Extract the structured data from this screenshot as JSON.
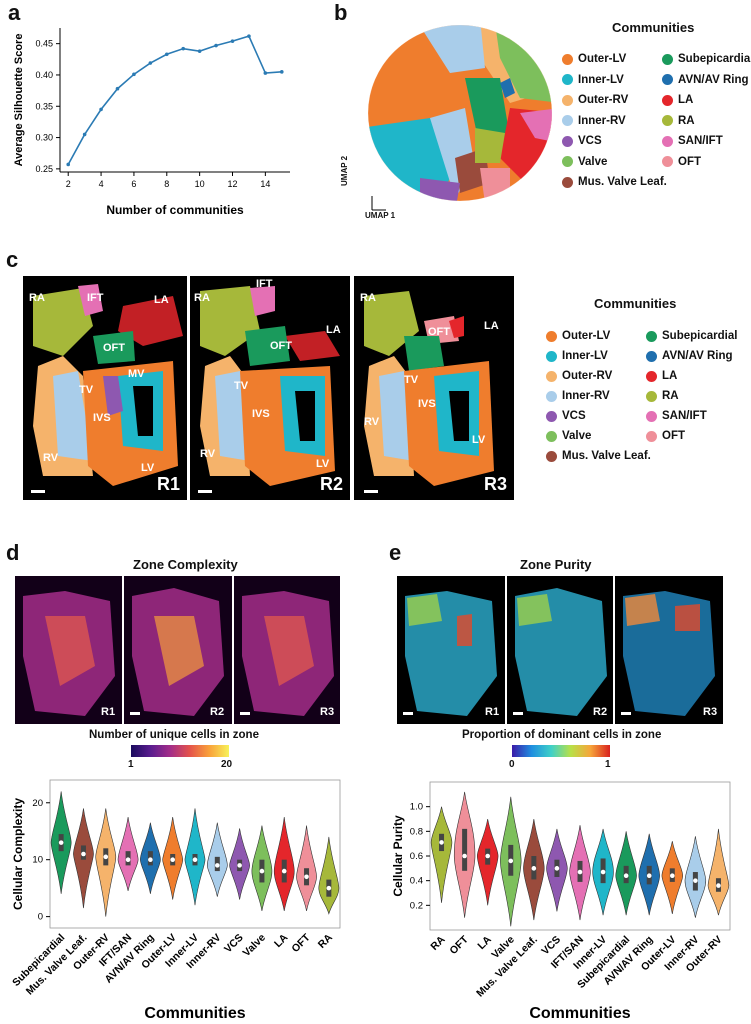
{
  "panels": {
    "a": "a",
    "b": "b",
    "c": "c",
    "d": "d",
    "e": "e"
  },
  "colors": {
    "Outer-LV": "#ef7d2d",
    "Inner-LV": "#1fb6c9",
    "Outer-RV": "#f5b36b",
    "Inner-RV": "#a9cdea",
    "VCS": "#8e58b0",
    "Valve": "#7dbf5c",
    "Mus. Valve Leaf.": "#9a4b3c",
    "Subepicardial": "#1a9a5c",
    "AVN/AV Ring": "#1f6fae",
    "LA": "#e4262b",
    "RA": "#a6b83a",
    "SAN/IFT": "#e470b4",
    "OFT": "#ef8f99",
    "line": "#2b7bb4"
  },
  "communities_legend": {
    "title": "Communities",
    "left": [
      "Outer-LV",
      "Inner-LV",
      "Outer-RV",
      "Inner-RV",
      "VCS",
      "Valve",
      "Mus. Valve Leaf."
    ],
    "right": [
      "Subepicardial",
      "AVN/AV Ring",
      "LA",
      "RA",
      "SAN/IFT",
      "OFT"
    ]
  },
  "umap": {
    "axis1": "UMAP 1",
    "axis2": "UMAP 2"
  },
  "panel_c": {
    "replicates": [
      "R1",
      "R2",
      "R3"
    ],
    "labels_r1": [
      "RA",
      "IFT",
      "LA",
      "OFT",
      "TV",
      "MV",
      "IVS",
      "RV",
      "LV"
    ],
    "labels_r2": [
      "RA",
      "IFT",
      "LA",
      "OFT",
      "TV",
      "IVS",
      "RV",
      "LV"
    ],
    "labels_r3": [
      "RA",
      "LA",
      "OFT",
      "TV",
      "IVS",
      "RV",
      "LV"
    ]
  },
  "panel_d": {
    "title": "Zone Complexity",
    "cbar_title": "Number of unique cells in zone",
    "cbar_min": "1",
    "cbar_max": "20",
    "reps": [
      "R1",
      "R2",
      "R3"
    ]
  },
  "panel_e": {
    "title": "Zone Purity",
    "cbar_title": "Proportion of dominant cells in zone",
    "cbar_min": "0",
    "cbar_max": "1",
    "reps": [
      "R1",
      "R2",
      "R3"
    ]
  },
  "chart_data": [
    {
      "type": "line",
      "xlabel": "Number of communities",
      "ylabel": "Average Silhouette Score",
      "x": [
        2,
        3,
        4,
        5,
        6,
        7,
        8,
        9,
        10,
        11,
        12,
        13,
        14,
        15
      ],
      "y": [
        0.257,
        0.305,
        0.345,
        0.378,
        0.401,
        0.419,
        0.433,
        0.442,
        0.438,
        0.447,
        0.454,
        0.462,
        0.403,
        0.405
      ],
      "xticks": [
        "2",
        "4",
        "6",
        "8",
        "10",
        "12",
        "14"
      ],
      "yticks": [
        "0.25",
        "0.30",
        "0.35",
        "0.40",
        "0.45"
      ],
      "ylim": [
        0.245,
        0.475
      ],
      "xlim": [
        1.5,
        15.5
      ]
    },
    {
      "type": "violin",
      "xlabel": "Communities",
      "ylabel": "Cellular Complexity",
      "categories": [
        "Subepicardial",
        "Mus. Valve Leaf.",
        "Outer-RV",
        "IFT/SAN",
        "AVN/AV Ring",
        "Outer-LV",
        "Inner-LV",
        "Inner-RV",
        "VCS",
        "Valve",
        "LA",
        "OFT",
        "RA"
      ],
      "medians": [
        13,
        11,
        10.5,
        10,
        10,
        10,
        10,
        9,
        9,
        8,
        8,
        7,
        5
      ],
      "q1": [
        11.5,
        10,
        9,
        9,
        9,
        9,
        9,
        8,
        8,
        6,
        6,
        5.5,
        3.5
      ],
      "q3": [
        14.5,
        12.5,
        12,
        11.5,
        11.5,
        11,
        11,
        10.5,
        10,
        10,
        10,
        8.5,
        6.5
      ],
      "min": [
        4,
        1.5,
        0,
        4.5,
        4,
        3,
        2,
        3.5,
        3,
        1,
        1,
        1,
        0.5
      ],
      "max": [
        22,
        19,
        19,
        17.5,
        16.5,
        17.5,
        19,
        16.5,
        15.5,
        16,
        17.5,
        16,
        14
      ],
      "yticks": [
        "0",
        "10",
        "20"
      ],
      "ylim": [
        -2,
        24
      ]
    },
    {
      "type": "violin",
      "xlabel": "Communities",
      "ylabel": "Cellular Purity",
      "categories": [
        "RA",
        "OFT",
        "LA",
        "Valve",
        "Mus. Valve Leaf.",
        "VCS",
        "IFT/SAN",
        "Inner-LV",
        "Subepicardial",
        "AVN/AV Ring",
        "Outer-LV",
        "Inner-RV",
        "Outer-RV"
      ],
      "medians": [
        0.71,
        0.6,
        0.6,
        0.56,
        0.5,
        0.5,
        0.47,
        0.47,
        0.44,
        0.44,
        0.44,
        0.4,
        0.36
      ],
      "q1": [
        0.64,
        0.48,
        0.53,
        0.44,
        0.41,
        0.43,
        0.39,
        0.38,
        0.38,
        0.37,
        0.39,
        0.32,
        0.31
      ],
      "q3": [
        0.78,
        0.82,
        0.66,
        0.69,
        0.6,
        0.57,
        0.56,
        0.58,
        0.52,
        0.52,
        0.5,
        0.47,
        0.42
      ],
      "min": [
        0.22,
        0.1,
        0.2,
        0.03,
        0.08,
        0.15,
        0.08,
        0.12,
        0.12,
        0.12,
        0.13,
        0.1,
        0.12
      ],
      "max": [
        1.0,
        1.12,
        0.9,
        1.08,
        0.9,
        0.82,
        0.85,
        0.82,
        0.8,
        0.78,
        0.72,
        0.76,
        0.82
      ],
      "yticks": [
        "0.2",
        "0.4",
        "0.6",
        "0.8",
        "1.0"
      ],
      "ylim": [
        0.0,
        1.2
      ]
    }
  ]
}
